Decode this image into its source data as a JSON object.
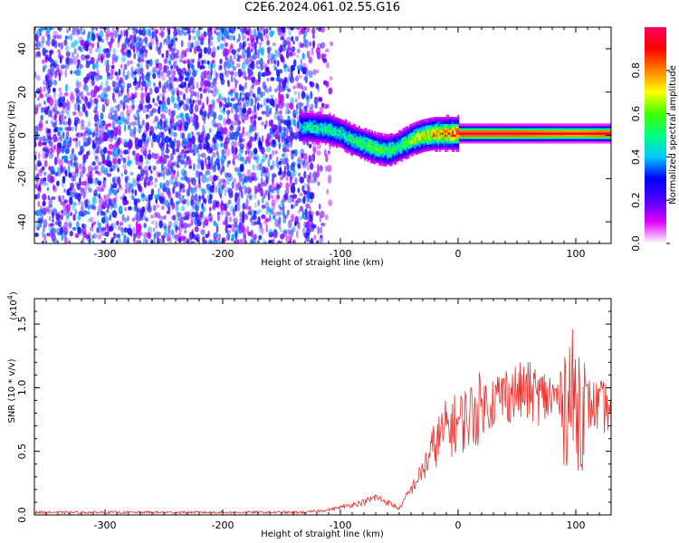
{
  "title": "C2E6.2024.061.02.55.G16",
  "chart_data": [
    {
      "type": "heatmap",
      "xlabel": "Height of straight line (km)",
      "ylabel": "Frequency (Hz)",
      "xlim": [
        -360,
        130
      ],
      "ylim": [
        -50,
        50
      ],
      "x_ticks": [
        -300,
        -200,
        -100,
        0,
        100
      ],
      "y_ticks": [
        -40,
        -20,
        0,
        20,
        40
      ],
      "colorbar": {
        "label": "Normalized spectral amplitude",
        "range": [
          0,
          1
        ],
        "ticks": [
          "0.0",
          "0.2",
          "0.4",
          "0.6",
          "0.8"
        ],
        "colors": [
          "#ffffff",
          "#e000ff",
          "#5000ff",
          "#0000ff",
          "#00c8ff",
          "#00ff80",
          "#40ff00",
          "#ffff00",
          "#ff8000",
          "#ff0000",
          "#ff0060"
        ]
      },
      "ridge": {
        "x": [
          -130,
          -110,
          -100,
          -90,
          -80,
          -70,
          -60,
          -50,
          -40,
          -30,
          -20,
          -10,
          0,
          10,
          50,
          100,
          130
        ],
        "frequency": [
          4,
          3,
          1,
          -2,
          -4,
          -6,
          -7,
          -5,
          -2,
          0,
          1,
          1,
          1,
          1,
          1,
          1,
          1
        ],
        "amplitude": [
          0.5,
          0.55,
          0.5,
          0.55,
          0.6,
          0.62,
          0.6,
          0.55,
          0.7,
          0.75,
          0.85,
          0.9,
          0.95,
          0.95,
          0.95,
          0.9,
          0.95
        ]
      },
      "noise_region_x": [
        -360,
        -130
      ]
    },
    {
      "type": "line",
      "xlabel": "Height of straight line (km)",
      "ylabel": "SNR (10 * v/v)",
      "y_multiplier": "(x10^4)",
      "xlim": [
        -360,
        130
      ],
      "ylim": [
        0,
        1.7
      ],
      "x_ticks": [
        -300,
        -200,
        -100,
        0,
        100
      ],
      "y_ticks": [
        0.0,
        0.5,
        1.0,
        1.5
      ],
      "y_tick_labels": [
        "0.0",
        "0.5",
        "1.0",
        "1.5"
      ],
      "color": "#e8322e",
      "series": [
        {
          "x": [
            -360,
            -300,
            -200,
            -130,
            -110,
            -100,
            -90,
            -80,
            -70,
            -60,
            -50,
            -40,
            -30,
            -20,
            -10,
            0,
            10,
            20,
            30,
            40,
            50,
            60,
            70,
            80,
            90,
            95,
            100,
            105,
            110,
            120,
            130
          ],
          "values": [
            0.02,
            0.02,
            0.02,
            0.02,
            0.04,
            0.06,
            0.08,
            0.1,
            0.14,
            0.1,
            0.05,
            0.2,
            0.35,
            0.55,
            0.68,
            0.72,
            0.78,
            0.85,
            0.9,
            0.95,
            0.96,
            0.97,
            0.93,
            0.92,
            0.9,
            0.95,
            0.88,
            0.9,
            0.87,
            0.85,
            0.84
          ]
        }
      ]
    }
  ]
}
